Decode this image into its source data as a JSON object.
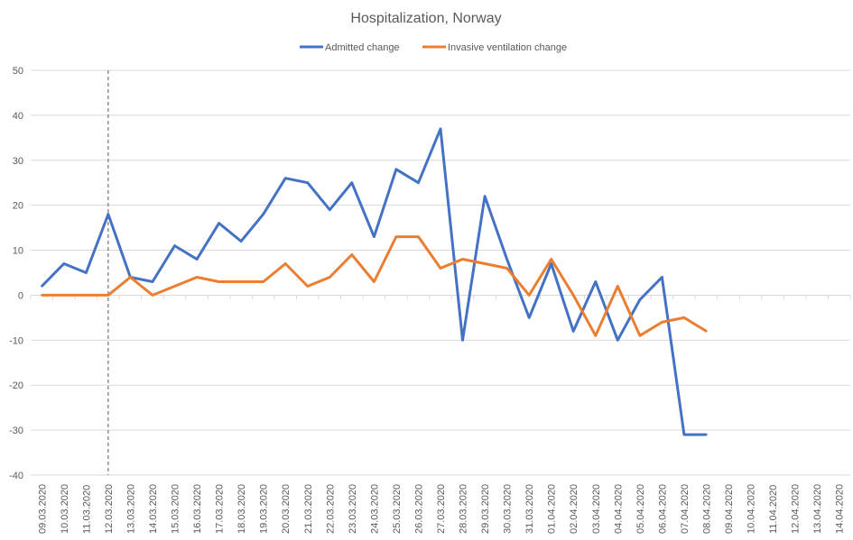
{
  "chart_data": {
    "type": "line",
    "title": "Hospitalization, Norway",
    "xlabel": "",
    "ylabel": "",
    "ylim": [
      -40,
      50
    ],
    "yticks": [
      -40,
      -30,
      -20,
      -10,
      0,
      10,
      20,
      30,
      40,
      50
    ],
    "grid": true,
    "legend": "top",
    "categories": [
      "09.03.2020",
      "10.03.2020",
      "11.03.2020",
      "12.03.2020",
      "13.03.2020",
      "14.03.2020",
      "15.03.2020",
      "16.03.2020",
      "17.03.2020",
      "18.03.2020",
      "19.03.2020",
      "20.03.2020",
      "21.03.2020",
      "22.03.2020",
      "23.03.2020",
      "24.03.2020",
      "25.03.2020",
      "26.03.2020",
      "27.03.2020",
      "28.03.2020",
      "29.03.2020",
      "30.03.2020",
      "31.03.2020",
      "01.04.2020",
      "02.04.2020",
      "03.04.2020",
      "04.04.2020",
      "05.04.2020",
      "06.04.2020",
      "07.04.2020",
      "08.04.2020",
      "09.04.2020",
      "10.04.2020",
      "11.04.2020",
      "12.04.2020",
      "13.04.2020",
      "14.04.2020"
    ],
    "marker_line": {
      "category": "12.03.2020",
      "style": "dashed"
    },
    "series": [
      {
        "name": "Admitted change",
        "color": "#4472C4",
        "values": [
          2,
          7,
          5,
          18,
          4,
          3,
          11,
          8,
          16,
          12,
          18,
          26,
          25,
          19,
          25,
          13,
          28,
          25,
          37,
          -10,
          22,
          8,
          -5,
          7,
          -8,
          3,
          -10,
          -1,
          4,
          -31,
          -31,
          null,
          null,
          null,
          null,
          null,
          null
        ]
      },
      {
        "name": "Invasive ventilation change",
        "color": "#ED7D31",
        "values": [
          0,
          0,
          0,
          0,
          4,
          0,
          2,
          4,
          3,
          3,
          3,
          7,
          2,
          4,
          9,
          3,
          13,
          13,
          6,
          8,
          7,
          6,
          0,
          8,
          0,
          -9,
          2,
          -9,
          -6,
          -5,
          -8,
          null,
          null,
          null,
          null,
          null,
          null
        ]
      }
    ]
  }
}
